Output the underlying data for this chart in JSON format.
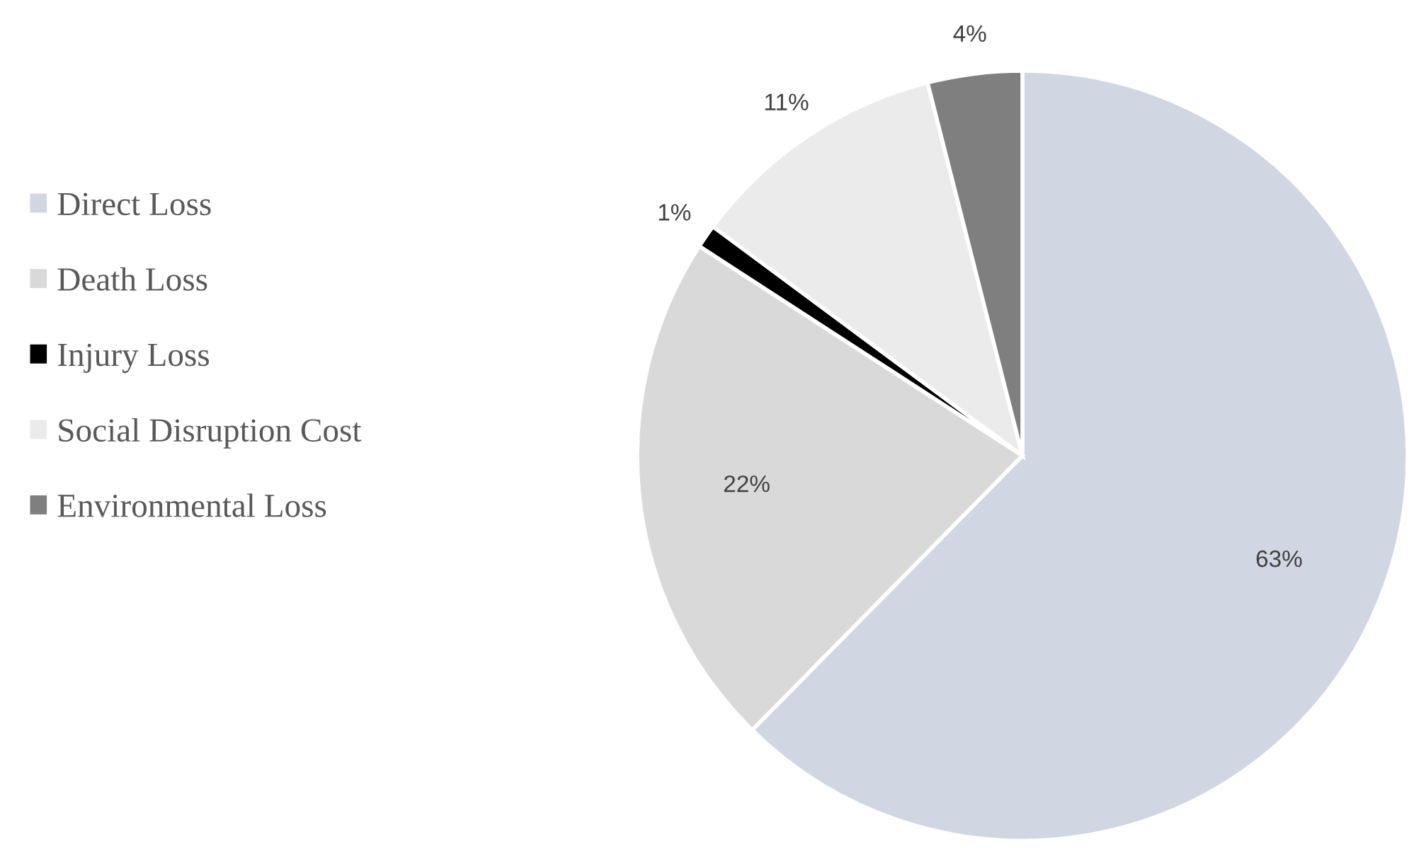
{
  "chart_data": {
    "type": "pie",
    "categories": [
      "Direct Loss",
      "Death Loss",
      "Injury Loss",
      "Social Disruption Cost",
      "Environmental Loss"
    ],
    "values": [
      63,
      22,
      1,
      11,
      4
    ],
    "colors": [
      "#d0d6e2",
      "#d9d9d9",
      "#000000",
      "#ebebeb",
      "#7f7f7f"
    ],
    "value_labels": [
      "63%",
      "22%",
      "1%",
      "11%",
      "4%"
    ],
    "legend": "left"
  }
}
